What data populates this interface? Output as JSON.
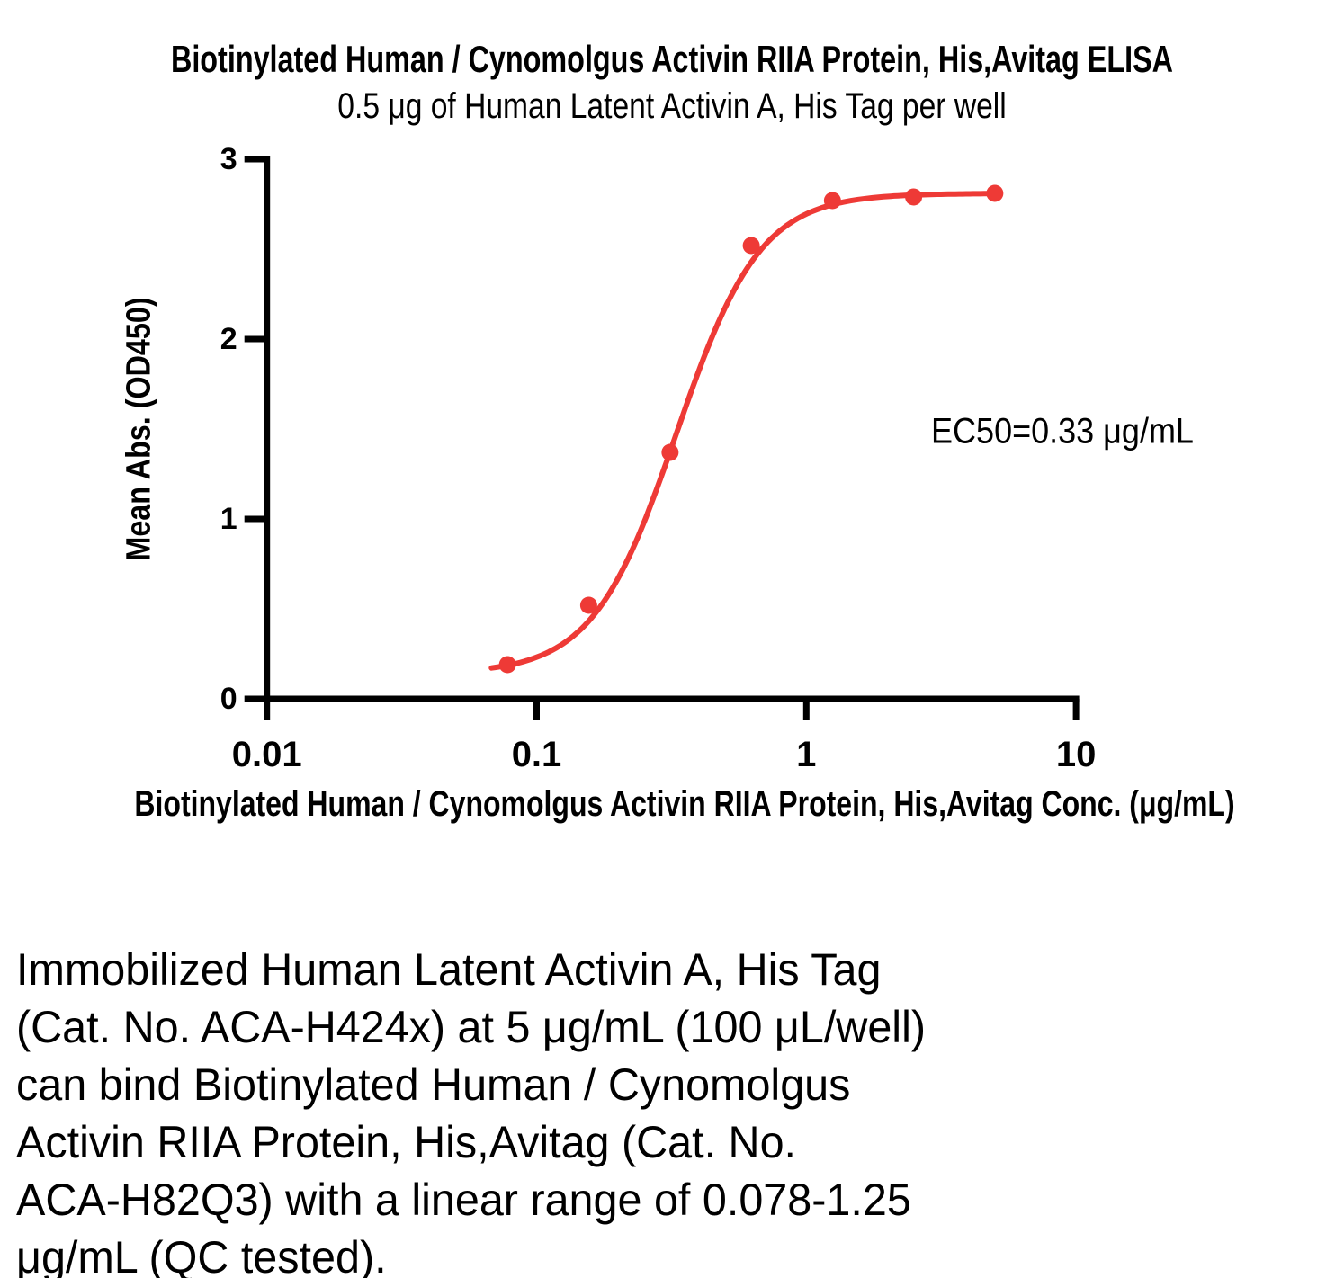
{
  "chart_data": {
    "type": "line",
    "title": "Biotinylated Human / Cynomolgus Activin RIIA Protein, His,Avitag ELISA",
    "subtitle": "0.5 μg of Human Latent Activin A, His Tag per well",
    "xlabel": "Biotinylated Human / Cynomolgus Activin RIIA Protein, His,Avitag Conc. (μg/mL)",
    "ylabel": "Mean Abs. (OD450)",
    "x_scale": "log10",
    "xlim": [
      0.01,
      10
    ],
    "ylim": [
      0,
      3
    ],
    "x_tick_values": [
      0.01,
      0.1,
      1,
      10
    ],
    "x_tick_labels": [
      "0.01",
      "0.1",
      "1",
      "10"
    ],
    "y_tick_values": [
      0,
      1,
      2,
      3
    ],
    "y_tick_labels": [
      "0",
      "1",
      "2",
      "3"
    ],
    "grid": false,
    "legend": "none",
    "series": [
      {
        "name": "Biotinylated Human / Cynomolgus Activin RIIA Protein, His,Avitag",
        "color": "#EE3A36",
        "x": [
          0.078,
          0.156,
          0.3125,
          0.625,
          1.25,
          2.5,
          5
        ],
        "y": [
          0.19,
          0.52,
          1.37,
          2.52,
          2.77,
          2.79,
          2.81
        ]
      }
    ],
    "fit_curve": {
      "model": "4PL",
      "bottom": 0.14,
      "top": 2.81,
      "ec50": 0.33,
      "hill": 2.8,
      "x_start": 0.068,
      "x_end": 5
    },
    "annotation": "EC50=0.33 μg/mL"
  },
  "caption": {
    "lines": [
      "Immobilized Human Latent Activin A, His Tag",
      "(Cat. No. ACA-H424x) at 5 μg/mL (100 μL/well)",
      "can bind Biotinylated Human / Cynomolgus",
      "Activin RIIA Protein, His,Avitag (Cat. No.",
      "ACA-H82Q3) with a linear range of 0.078-1.25",
      "μg/mL (QC tested)."
    ]
  }
}
